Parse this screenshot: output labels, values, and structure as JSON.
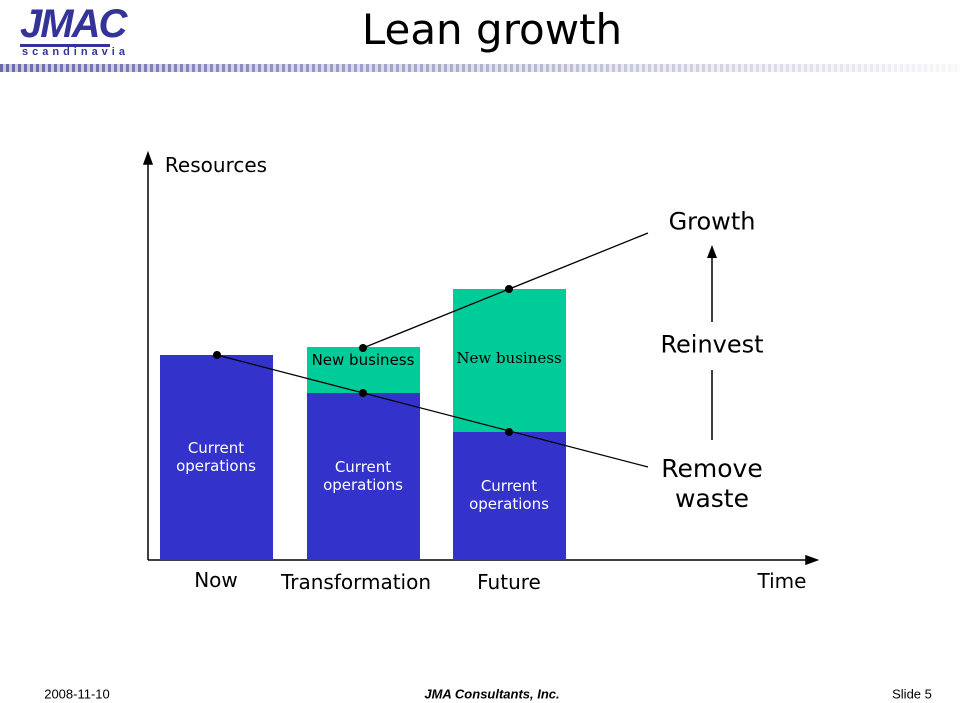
{
  "header": {
    "logo": "JMAC",
    "logo_subtitle": "scandinavia",
    "title": "Lean growth"
  },
  "diagram": {
    "y_axis_label": "Resources",
    "x_axis_label": "Time",
    "columns": [
      {
        "label": "Now",
        "segments": [
          "Current operations"
        ]
      },
      {
        "label": "Transformation",
        "segments": [
          "Current operations",
          "New business"
        ]
      },
      {
        "label": "Future",
        "segments": [
          "Current operations",
          "New business"
        ]
      }
    ],
    "annotations": {
      "growth": "Growth",
      "reinvest": "Reinvest",
      "remove_waste": "Remove waste"
    }
  },
  "footer": {
    "date": "2008-11-10",
    "company": "JMA Consultants, Inc.",
    "slide": "Slide 5"
  }
}
